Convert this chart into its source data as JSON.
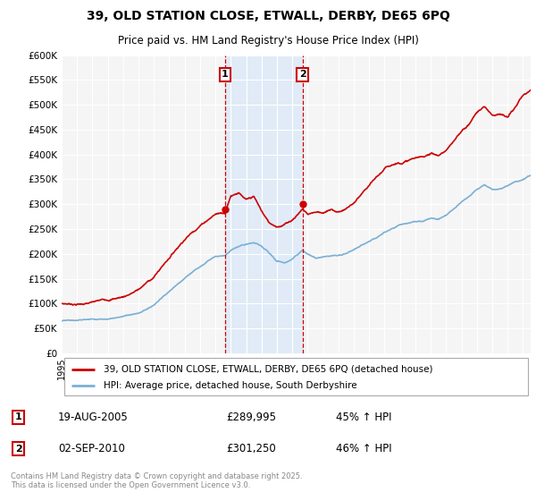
{
  "title_line1": "39, OLD STATION CLOSE, ETWALL, DERBY, DE65 6PQ",
  "title_line2": "Price paid vs. HM Land Registry's House Price Index (HPI)",
  "ylim": [
    0,
    600000
  ],
  "xlim_start": 1995.0,
  "xlim_end": 2025.5,
  "background_color": "#ffffff",
  "plot_bg_color": "#f5f5f5",
  "grid_color": "#ffffff",
  "red_line_color": "#cc0000",
  "blue_line_color": "#7ab0d4",
  "shade_color": "#d8e8f8",
  "marker1_x": 2005.63,
  "marker1_y": 289995,
  "marker1_label": "1",
  "marker1_date": "19-AUG-2005",
  "marker1_price": "£289,995",
  "marker1_hpi": "45% ↑ HPI",
  "marker2_x": 2010.67,
  "marker2_y": 301250,
  "marker2_label": "2",
  "marker2_date": "02-SEP-2010",
  "marker2_price": "£301,250",
  "marker2_hpi": "46% ↑ HPI",
  "legend_entry1": "39, OLD STATION CLOSE, ETWALL, DERBY, DE65 6PQ (detached house)",
  "legend_entry2": "HPI: Average price, detached house, South Derbyshire",
  "footnote": "Contains HM Land Registry data © Crown copyright and database right 2025.\nThis data is licensed under the Open Government Licence v3.0.",
  "red_keypoints": [
    [
      1995.0,
      100000
    ],
    [
      1996.0,
      100000
    ],
    [
      1997.0,
      103000
    ],
    [
      1998.0,
      108000
    ],
    [
      1999.0,
      115000
    ],
    [
      2000.0,
      130000
    ],
    [
      2001.0,
      155000
    ],
    [
      2002.0,
      195000
    ],
    [
      2003.0,
      235000
    ],
    [
      2004.0,
      265000
    ],
    [
      2004.5,
      278000
    ],
    [
      2005.0,
      290000
    ],
    [
      2005.63,
      295000
    ],
    [
      2006.0,
      330000
    ],
    [
      2006.5,
      338000
    ],
    [
      2007.0,
      320000
    ],
    [
      2007.5,
      325000
    ],
    [
      2008.0,
      295000
    ],
    [
      2008.5,
      270000
    ],
    [
      2009.0,
      265000
    ],
    [
      2009.5,
      270000
    ],
    [
      2010.0,
      280000
    ],
    [
      2010.67,
      303000
    ],
    [
      2011.0,
      293000
    ],
    [
      2011.5,
      298000
    ],
    [
      2012.0,
      298000
    ],
    [
      2012.5,
      302000
    ],
    [
      2013.0,
      298000
    ],
    [
      2013.5,
      305000
    ],
    [
      2014.0,
      315000
    ],
    [
      2014.5,
      330000
    ],
    [
      2015.0,
      345000
    ],
    [
      2015.5,
      360000
    ],
    [
      2016.0,
      375000
    ],
    [
      2016.5,
      385000
    ],
    [
      2017.0,
      390000
    ],
    [
      2017.5,
      395000
    ],
    [
      2018.0,
      400000
    ],
    [
      2018.5,
      400000
    ],
    [
      2019.0,
      410000
    ],
    [
      2019.5,
      405000
    ],
    [
      2020.0,
      415000
    ],
    [
      2020.5,
      430000
    ],
    [
      2021.0,
      450000
    ],
    [
      2021.5,
      465000
    ],
    [
      2022.0,
      490000
    ],
    [
      2022.5,
      500000
    ],
    [
      2023.0,
      485000
    ],
    [
      2023.5,
      490000
    ],
    [
      2024.0,
      480000
    ],
    [
      2024.5,
      500000
    ],
    [
      2025.0,
      520000
    ],
    [
      2025.5,
      530000
    ]
  ],
  "blue_keypoints": [
    [
      1995.0,
      65000
    ],
    [
      1996.0,
      64000
    ],
    [
      1997.0,
      67000
    ],
    [
      1998.0,
      70000
    ],
    [
      1999.0,
      76000
    ],
    [
      2000.0,
      85000
    ],
    [
      2001.0,
      100000
    ],
    [
      2002.0,
      125000
    ],
    [
      2003.0,
      153000
    ],
    [
      2004.0,
      175000
    ],
    [
      2004.5,
      188000
    ],
    [
      2005.0,
      197000
    ],
    [
      2005.63,
      202000
    ],
    [
      2006.0,
      213000
    ],
    [
      2006.5,
      222000
    ],
    [
      2007.0,
      225000
    ],
    [
      2007.5,
      228000
    ],
    [
      2008.0,
      220000
    ],
    [
      2008.5,
      205000
    ],
    [
      2009.0,
      188000
    ],
    [
      2009.5,
      185000
    ],
    [
      2010.0,
      192000
    ],
    [
      2010.67,
      208000
    ],
    [
      2011.0,
      198000
    ],
    [
      2011.5,
      192000
    ],
    [
      2012.0,
      194000
    ],
    [
      2012.5,
      198000
    ],
    [
      2013.0,
      200000
    ],
    [
      2013.5,
      205000
    ],
    [
      2014.0,
      212000
    ],
    [
      2014.5,
      220000
    ],
    [
      2015.0,
      228000
    ],
    [
      2015.5,
      238000
    ],
    [
      2016.0,
      250000
    ],
    [
      2016.5,
      258000
    ],
    [
      2017.0,
      265000
    ],
    [
      2017.5,
      268000
    ],
    [
      2018.0,
      272000
    ],
    [
      2018.5,
      270000
    ],
    [
      2019.0,
      275000
    ],
    [
      2019.5,
      272000
    ],
    [
      2020.0,
      278000
    ],
    [
      2020.5,
      290000
    ],
    [
      2021.0,
      305000
    ],
    [
      2021.5,
      318000
    ],
    [
      2022.0,
      330000
    ],
    [
      2022.5,
      340000
    ],
    [
      2023.0,
      330000
    ],
    [
      2023.5,
      328000
    ],
    [
      2024.0,
      335000
    ],
    [
      2024.5,
      345000
    ],
    [
      2025.0,
      350000
    ],
    [
      2025.5,
      358000
    ]
  ]
}
